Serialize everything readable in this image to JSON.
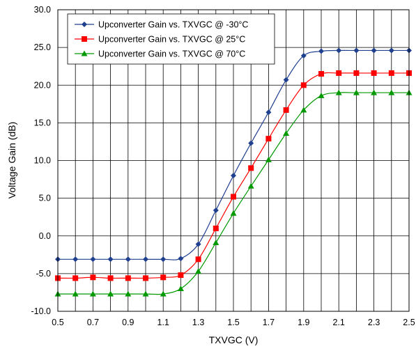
{
  "chart_data": {
    "type": "line",
    "xlabel": "TXVGC (V)",
    "ylabel": "Voltage Gain (dB)",
    "xlim": [
      0.5,
      2.5
    ],
    "ylim": [
      -10,
      30
    ],
    "x_ticks": [
      "0.5",
      "0.7",
      "0.9",
      "1.1",
      "1.3",
      "1.5",
      "1.7",
      "1.9",
      "2.1",
      "2.3",
      "2.5"
    ],
    "y_ticks": [
      "-10.0",
      "-5.0",
      "0.0",
      "5.0",
      "10.0",
      "15.0",
      "20.0",
      "25.0",
      "30.0"
    ],
    "grid": true,
    "legend_position": "top-left",
    "x": [
      0.5,
      0.6,
      0.7,
      0.8,
      0.9,
      1.0,
      1.1,
      1.2,
      1.3,
      1.4,
      1.5,
      1.6,
      1.7,
      1.8,
      1.9,
      2.0,
      2.1,
      2.2,
      2.3,
      2.4,
      2.5
    ],
    "series": [
      {
        "name": "Upconverter Gain vs. TXVGC @ -30°C",
        "color": "#1f3f8f",
        "marker": "diamond",
        "values": [
          -3.1,
          -3.1,
          -3.1,
          -3.1,
          -3.1,
          -3.1,
          -3.1,
          -3.0,
          -1.1,
          3.4,
          8.0,
          12.3,
          16.4,
          20.7,
          23.9,
          24.5,
          24.6,
          24.6,
          24.6,
          24.6,
          24.6
        ]
      },
      {
        "name": "Upconverter Gain vs. TXVGC @ 25°C",
        "color": "#ff0000",
        "marker": "square",
        "values": [
          -5.6,
          -5.6,
          -5.5,
          -5.6,
          -5.6,
          -5.6,
          -5.5,
          -5.2,
          -3.1,
          1.0,
          5.2,
          9.0,
          12.9,
          16.7,
          20.0,
          21.5,
          21.6,
          21.6,
          21.6,
          21.6,
          21.6
        ]
      },
      {
        "name": "Upconverter Gain vs. TXVGC @ 70°C",
        "color": "#009900",
        "marker": "triangle",
        "values": [
          -7.7,
          -7.7,
          -7.7,
          -7.7,
          -7.7,
          -7.7,
          -7.7,
          -7.0,
          -4.7,
          -0.9,
          3.0,
          6.6,
          10.1,
          13.6,
          16.7,
          18.6,
          19.0,
          19.0,
          19.0,
          19.0,
          19.0
        ]
      }
    ]
  }
}
